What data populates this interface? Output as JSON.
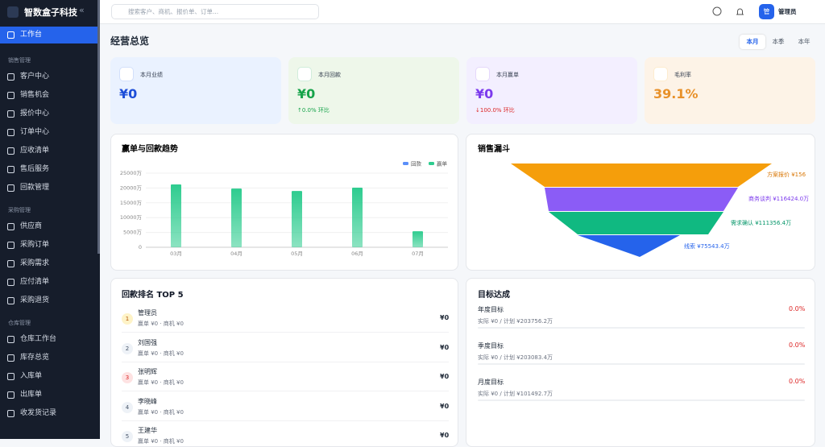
{
  "sidebar": {
    "brand": "智数盒子科技",
    "collapse": "«",
    "active": "工作台",
    "sections": [
      {
        "title": "销售管理",
        "items": [
          "客户中心",
          "销售机会",
          "报价中心",
          "订单中心",
          "应收清单",
          "售后服务",
          "回款管理"
        ]
      },
      {
        "title": "采购管理",
        "items": [
          "供应商",
          "采购订单",
          "采购需求",
          "应付清单",
          "采购退货"
        ]
      },
      {
        "title": "仓库管理",
        "items": [
          "仓库工作台",
          "库存总览",
          "入库单",
          "出库单",
          "收发货记录"
        ]
      }
    ]
  },
  "topbar": {
    "search_placeholder": "搜索客户、商机、报价单、订单...",
    "avatar": "管",
    "user": "管理员"
  },
  "overview": {
    "title": "经营总览",
    "tabs": [
      "本月",
      "本季",
      "本年"
    ],
    "active_tab": "本月",
    "cards": [
      {
        "label": "本月业绩",
        "value": "¥0"
      },
      {
        "label": "本月回款",
        "value": "¥0",
        "change": "↑0.0% 环比"
      },
      {
        "label": "本月赢单",
        "value": "¥0",
        "change": "↓100.0% 环比"
      },
      {
        "label": "毛利率",
        "value": "39.1%"
      }
    ]
  },
  "chart_data": {
    "type": "bar",
    "title": "赢单与回款趋势",
    "categories": [
      "03月",
      "04月",
      "05月",
      "06月",
      "07月"
    ],
    "series": [
      {
        "name": "回款",
        "color": "#5b8ff9",
        "values": [
          0,
          0,
          0,
          0,
          0
        ]
      },
      {
        "name": "赢单",
        "color": "#2ecc8f",
        "values": [
          21200,
          19800,
          19000,
          20100,
          5400
        ]
      }
    ],
    "ylim": [
      0,
      25000
    ],
    "yticks": [
      {
        "value": 0,
        "label": "0"
      },
      {
        "value": 5000,
        "label": "5000万"
      },
      {
        "value": 10000,
        "label": "10000万"
      },
      {
        "value": 15000,
        "label": "15000万"
      },
      {
        "value": 20000,
        "label": "20000万"
      },
      {
        "value": 25000,
        "label": "25000万"
      }
    ],
    "legend": "top-right"
  },
  "funnel": {
    "title": "销售漏斗",
    "stages": [
      "方案报价 ¥156",
      "商务谈判 ¥116424.0万",
      "需求确认 ¥111356.4万",
      "线索 ¥75543.4万"
    ]
  },
  "ranking": {
    "title": "回款排名 TOP 5",
    "rows": [
      {
        "rank": "1",
        "name": "管理员",
        "detail": "赢单 ¥0 · 商机 ¥0",
        "amount": "¥0"
      },
      {
        "rank": "2",
        "name": "刘国强",
        "detail": "赢单 ¥0 · 商机 ¥0",
        "amount": "¥0"
      },
      {
        "rank": "3",
        "name": "张明辉",
        "detail": "赢单 ¥0 · 商机 ¥0",
        "amount": "¥0"
      },
      {
        "rank": "4",
        "name": "李晓峰",
        "detail": "赢单 ¥0 · 商机 ¥0",
        "amount": "¥0"
      },
      {
        "rank": "5",
        "name": "王建华",
        "detail": "赢单 ¥0 · 商机 ¥0",
        "amount": "¥0"
      }
    ]
  },
  "goals": {
    "title": "目标达成",
    "rows": [
      {
        "name": "年度目标",
        "percent": "0.0%",
        "detail": "实际 ¥0 / 计划 ¥203756.2万"
      },
      {
        "name": "季度目标",
        "percent": "0.0%",
        "detail": "实际 ¥0 / 计划 ¥203083.4万"
      },
      {
        "name": "月度目标",
        "percent": "0.0%",
        "detail": "实际 ¥0 / 计划 ¥101492.7万"
      }
    ]
  }
}
